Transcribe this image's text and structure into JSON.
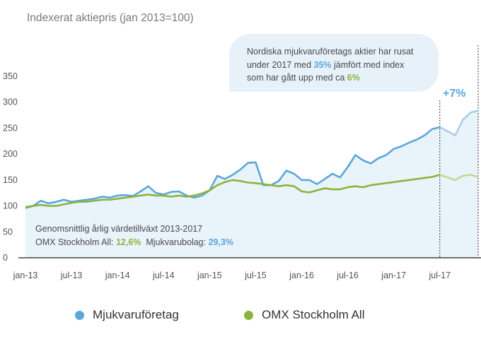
{
  "header": {
    "title": "Indexerat aktiepris (jan 2013=100)"
  },
  "callout": {
    "line1": "Nordiska mjukvaruföretags aktier har rusat",
    "line2_pre": "under 2017 med ",
    "line2_val": "35%",
    "line2_post": " jämfört med index",
    "line3_pre": "som har gått upp med ca ",
    "line3_val": "6%"
  },
  "cagr": {
    "title": "Genomsnittlig årlig värdetillväxt 2013-2017",
    "omx_label": "OMX Stockholm All: ",
    "omx_value": "12,6%",
    "soft_label": "Mjukvarubolag: ",
    "soft_value": "29,3%"
  },
  "delta_label": "+7%",
  "colors": {
    "software": "#5ba7da",
    "software_light": "#a8cfea",
    "omx": "#8cb43c",
    "omx_light": "#c2d894",
    "area": "#e9f3fa",
    "axis": "#222222"
  },
  "legend": [
    {
      "label": "Mjukvaruföretag",
      "color": "#5ba7da"
    },
    {
      "label": "OMX Stockholm All",
      "color": "#8cb43c"
    }
  ],
  "chart_data": {
    "type": "line",
    "title": "Indexerat aktiepris (jan 2013=100)",
    "ylim": [
      0,
      350
    ],
    "yticks": [
      0,
      50,
      100,
      150,
      200,
      250,
      300,
      350
    ],
    "xlim": [
      "2013-01",
      "2017-12"
    ],
    "xticks": [
      "jan-13",
      "jul-13",
      "jan-14",
      "jul-14",
      "jan-15",
      "jul-15",
      "jan-16",
      "jul-16",
      "jan-17",
      "jul-17"
    ],
    "projection_start": "2017-07",
    "grid": false,
    "legend_position": "bottom",
    "series": [
      {
        "name": "Mjukvaruföretag",
        "x": [
          "2013-01",
          "2013-02",
          "2013-03",
          "2013-04",
          "2013-05",
          "2013-06",
          "2013-07",
          "2013-08",
          "2013-09",
          "2013-10",
          "2013-11",
          "2013-12",
          "2014-01",
          "2014-02",
          "2014-03",
          "2014-04",
          "2014-05",
          "2014-06",
          "2014-07",
          "2014-08",
          "2014-09",
          "2014-10",
          "2014-11",
          "2014-12",
          "2015-01",
          "2015-02",
          "2015-03",
          "2015-04",
          "2015-05",
          "2015-06",
          "2015-07",
          "2015-08",
          "2015-09",
          "2015-10",
          "2015-11",
          "2015-12",
          "2016-01",
          "2016-02",
          "2016-03",
          "2016-04",
          "2016-05",
          "2016-06",
          "2016-07",
          "2016-08",
          "2016-09",
          "2016-10",
          "2016-11",
          "2016-12",
          "2017-01",
          "2017-02",
          "2017-03",
          "2017-04",
          "2017-05",
          "2017-06",
          "2017-07",
          "2017-08",
          "2017-09",
          "2017-10",
          "2017-11",
          "2017-12"
        ],
        "values": [
          96,
          100,
          110,
          105,
          108,
          112,
          108,
          110,
          112,
          114,
          118,
          116,
          120,
          121,
          119,
          128,
          138,
          125,
          122,
          127,
          128,
          120,
          116,
          120,
          130,
          158,
          152,
          160,
          170,
          183,
          184,
          140,
          140,
          148,
          168,
          162,
          150,
          150,
          142,
          152,
          162,
          155,
          175,
          198,
          188,
          182,
          192,
          198,
          210,
          215,
          222,
          228,
          236,
          248,
          252,
          244,
          236,
          266,
          280,
          284
        ]
      },
      {
        "name": "OMX Stockholm All",
        "x": [
          "2013-01",
          "2013-02",
          "2013-03",
          "2013-04",
          "2013-05",
          "2013-06",
          "2013-07",
          "2013-08",
          "2013-09",
          "2013-10",
          "2013-11",
          "2013-12",
          "2014-01",
          "2014-02",
          "2014-03",
          "2014-04",
          "2014-05",
          "2014-06",
          "2014-07",
          "2014-08",
          "2014-09",
          "2014-10",
          "2014-11",
          "2014-12",
          "2015-01",
          "2015-02",
          "2015-03",
          "2015-04",
          "2015-05",
          "2015-06",
          "2015-07",
          "2015-08",
          "2015-09",
          "2015-10",
          "2015-11",
          "2015-12",
          "2016-01",
          "2016-02",
          "2016-03",
          "2016-04",
          "2016-05",
          "2016-06",
          "2016-07",
          "2016-08",
          "2016-09",
          "2016-10",
          "2016-11",
          "2016-12",
          "2017-01",
          "2017-02",
          "2017-03",
          "2017-04",
          "2017-05",
          "2017-06",
          "2017-07",
          "2017-08",
          "2017-09",
          "2017-10",
          "2017-11",
          "2017-12"
        ],
        "values": [
          98,
          100,
          102,
          100,
          100,
          103,
          106,
          108,
          108,
          110,
          112,
          112,
          114,
          116,
          118,
          120,
          122,
          120,
          120,
          118,
          120,
          118,
          120,
          124,
          130,
          140,
          146,
          150,
          148,
          145,
          144,
          142,
          140,
          138,
          140,
          138,
          128,
          126,
          130,
          134,
          132,
          132,
          136,
          138,
          136,
          140,
          142,
          144,
          146,
          148,
          150,
          152,
          154,
          156,
          160,
          155,
          150,
          158,
          160,
          156
        ]
      }
    ]
  }
}
